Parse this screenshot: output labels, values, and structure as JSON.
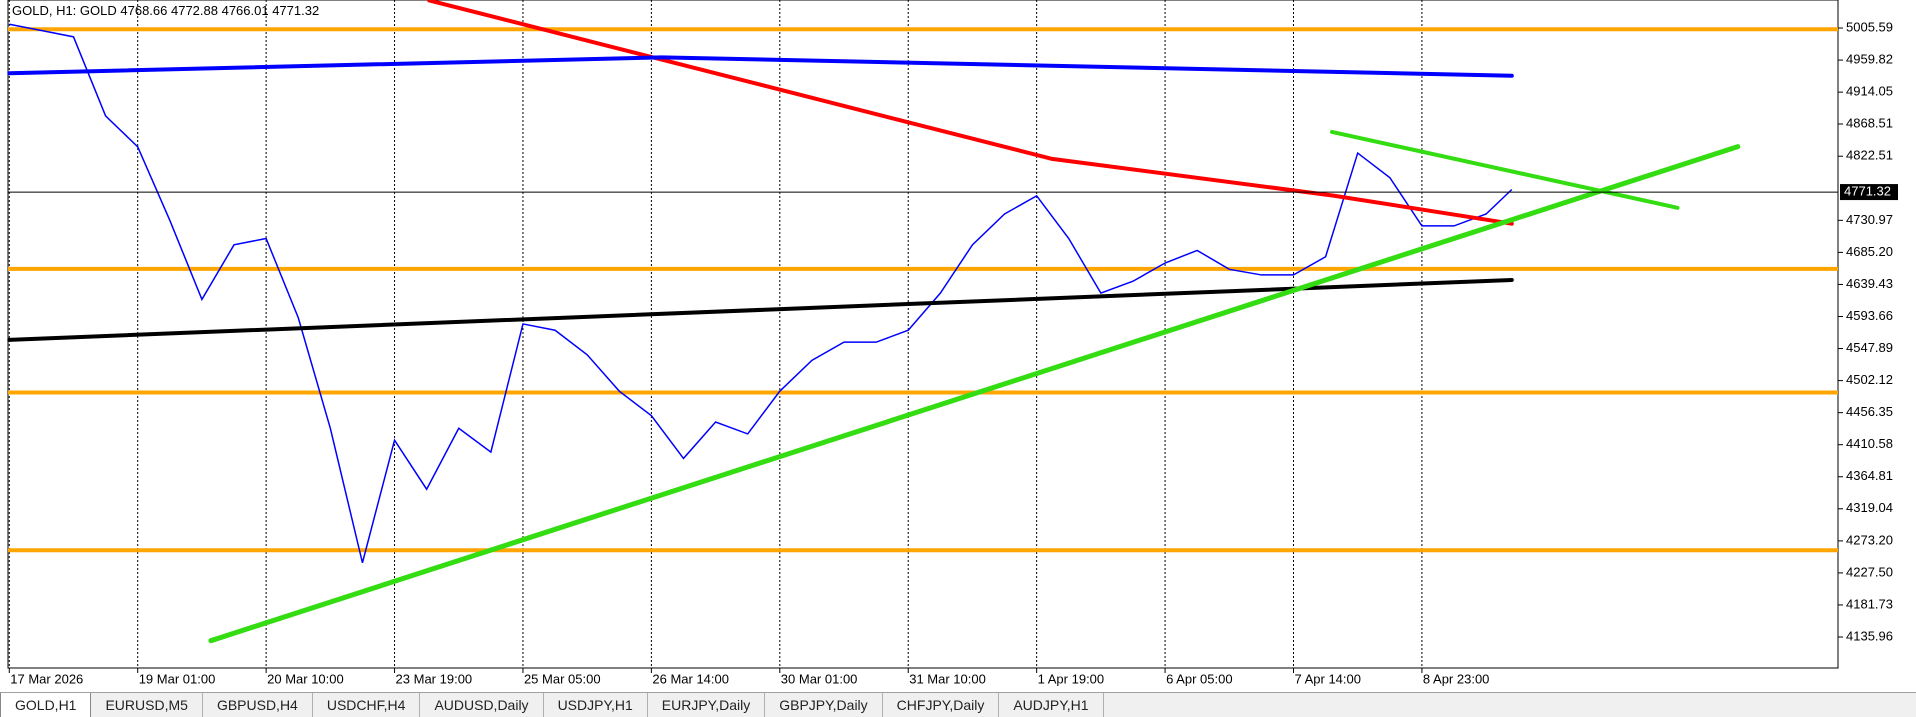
{
  "header": {
    "title": "GOLD, H1:",
    "symbol": "GOLD",
    "ohlc": "4768.66 4772.88 4766.01 4771.32"
  },
  "chart": {
    "xlim": [
      -0.01,
      14.24
    ],
    "ylim": [
      4091.7,
      5045.6
    ],
    "yticks": [
      {
        "value": 5005.59,
        "label": "5005.59"
      },
      {
        "value": 4959.82,
        "label": "4959.82"
      },
      {
        "value": 4914.05,
        "label": "4914.05"
      },
      {
        "value": 4868.51,
        "label": "4868.51"
      },
      {
        "value": 4822.51,
        "label": "4822.51"
      },
      {
        "value": 4730.97,
        "label": "4730.97"
      },
      {
        "value": 4685.2,
        "label": "4685.20"
      },
      {
        "value": 4639.43,
        "label": "4639.43"
      },
      {
        "value": 4593.66,
        "label": "4593.66"
      },
      {
        "value": 4547.89,
        "label": "4547.89"
      },
      {
        "value": 4502.12,
        "label": "4502.12"
      },
      {
        "value": 4456.35,
        "label": "4456.35"
      },
      {
        "value": 4410.58,
        "label": "4410.58"
      },
      {
        "value": 4364.81,
        "label": "4364.81"
      },
      {
        "value": 4319.04,
        "label": "4319.04"
      },
      {
        "value": 4273.2,
        "label": "4273.20"
      },
      {
        "value": 4227.5,
        "label": "4227.50"
      },
      {
        "value": 4181.73,
        "label": "4181.73"
      },
      {
        "value": 4135.96,
        "label": "4135.96"
      }
    ],
    "xticks": [
      {
        "value": 0,
        "label": "17 Mar 2026"
      },
      {
        "value": 1,
        "label": "19 Mar 01:00"
      },
      {
        "value": 2,
        "label": "20 Mar 10:00"
      },
      {
        "value": 3,
        "label": "23 Mar 19:00"
      },
      {
        "value": 4,
        "label": "25 Mar 05:00"
      },
      {
        "value": 5,
        "label": "26 Mar 14:00"
      },
      {
        "value": 6,
        "label": "30 Mar 01:00"
      },
      {
        "value": 7,
        "label": "31 Mar 10:00"
      },
      {
        "value": 8,
        "label": "1 Apr 19:00"
      },
      {
        "value": 9,
        "label": "6 Apr 05:00"
      },
      {
        "value": 10,
        "label": "7 Apr 14:00"
      },
      {
        "value": 11,
        "label": "8 Apr 23:00"
      }
    ],
    "price": {
      "color": "#0000ff",
      "x": [
        0,
        0.25,
        0.5,
        0.75,
        1,
        1.25,
        1.5,
        1.75,
        2,
        2.25,
        2.5,
        2.75,
        3,
        3.25,
        3.5,
        3.75,
        4,
        4.25,
        4.5,
        4.75,
        5,
        5.25,
        5.5,
        5.75,
        6,
        6.25,
        6.5,
        6.75,
        7,
        7.25,
        7.5,
        7.75,
        8,
        8.25,
        8.5,
        8.75,
        9,
        9.25,
        9.5,
        9.75,
        10,
        10.25,
        10.5,
        10.75,
        11,
        11.25,
        11.5,
        11.7
      ],
      "values": [
        5011,
        5002,
        4993,
        4880,
        4836,
        4731,
        4618,
        4696,
        4705,
        4592,
        4434,
        4242,
        4417,
        4347,
        4434,
        4400,
        4583,
        4574,
        4539,
        4487,
        4452,
        4391,
        4443,
        4426,
        4487,
        4531,
        4557,
        4557,
        4574,
        4627,
        4696,
        4740,
        4766,
        4705,
        4627,
        4644,
        4670,
        4688,
        4661,
        4653,
        4653,
        4679,
        4827,
        4792,
        4723,
        4723,
        4740,
        4775
      ]
    },
    "lines": [
      {
        "color": "#ff0000",
        "width": 4,
        "x": [
          3.27,
          8.12,
          10.31,
          11.7
        ],
        "values": [
          5045,
          4818.7,
          4766.3,
          4726.2
        ]
      },
      {
        "color": "#0000ff",
        "width": 4,
        "x": [
          0,
          5.08,
          11.7
        ],
        "values": [
          4941,
          4963.7,
          4937.5
        ]
      },
      {
        "color": "#000000",
        "width": 4,
        "x": [
          0,
          11.7
        ],
        "values": [
          4560.3,
          4645.8
        ]
      },
      {
        "color": "#33dd11",
        "width": 5,
        "x": [
          1.57,
          13.46
        ],
        "values": [
          4130.7,
          4836.2
        ]
      },
      {
        "color": "#33dd11",
        "width": 4,
        "x": [
          10.3,
          12.99
        ],
        "values": [
          4857.2,
          4748.9
        ]
      }
    ],
    "levels": {
      "color": "#ffa500",
      "values": [
        5003.8,
        4661.6,
        4485.2,
        4259.9
      ]
    },
    "current": {
      "value": 4771.32,
      "label": "4771.32"
    }
  },
  "tabs": [
    "GOLD,H1",
    "EURUSD,M5",
    "GBPUSD,H4",
    "USDCHF,H4",
    "AUDUSD,Daily",
    "USDJPY,H1",
    "EURJPY,Daily",
    "GBPJPY,Daily",
    "CHFJPY,Daily",
    "AUDJPY,H1"
  ]
}
